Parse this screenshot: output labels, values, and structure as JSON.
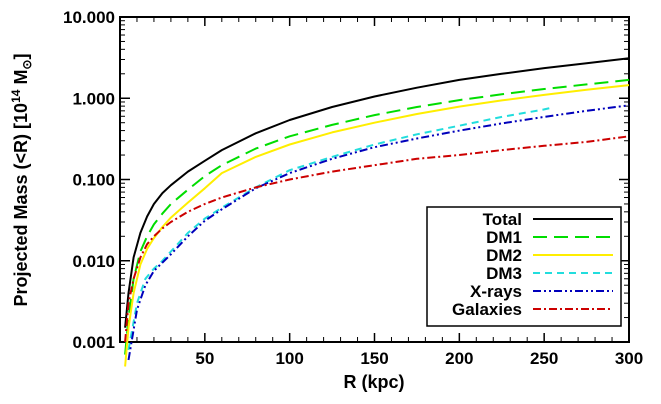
{
  "chart_data": {
    "type": "line",
    "title": "",
    "xlabel": "R (kpc)",
    "ylabel_prefix": "Projected Mass (<R) [10",
    "ylabel_exp": "14",
    "ylabel_unit": " M",
    "ylabel_sub": "⊙",
    "ylabel_suffix": "]",
    "xscale": "linear",
    "yscale": "log",
    "xlim": [
      0,
      300
    ],
    "ylim": [
      0.001,
      10
    ],
    "x_ticks": [
      50,
      100,
      150,
      200,
      250,
      300
    ],
    "x_tick_labels": [
      "50",
      "100",
      "150",
      "200",
      "250",
      "300"
    ],
    "y_ticks": [
      0.001,
      0.01,
      0.1,
      1,
      10
    ],
    "y_tick_labels": [
      "0.001",
      "0.010",
      "0.100",
      "1.000",
      "10.000"
    ],
    "legend_position": "bottom-right",
    "series": [
      {
        "name": "Total",
        "color": "#000000",
        "dash": "solid",
        "x": [
          3,
          5,
          8,
          12,
          16,
          20,
          25,
          30,
          40,
          50,
          60,
          80,
          100,
          125,
          150,
          175,
          200,
          225,
          250,
          275,
          300
        ],
        "y": [
          0.0015,
          0.004,
          0.011,
          0.022,
          0.035,
          0.05,
          0.068,
          0.085,
          0.125,
          0.17,
          0.23,
          0.37,
          0.54,
          0.78,
          1.05,
          1.35,
          1.68,
          2.0,
          2.35,
          2.7,
          3.1
        ]
      },
      {
        "name": "DM1",
        "color": "#00dd00",
        "dash": "longdash",
        "x": [
          3,
          5,
          8,
          12,
          16,
          20,
          25,
          30,
          40,
          50,
          60,
          80,
          100,
          125,
          150,
          175,
          200,
          225,
          250,
          275,
          300
        ],
        "y": [
          0.0007,
          0.002,
          0.006,
          0.013,
          0.02,
          0.028,
          0.038,
          0.05,
          0.075,
          0.11,
          0.15,
          0.24,
          0.34,
          0.47,
          0.62,
          0.78,
          0.95,
          1.12,
          1.3,
          1.48,
          1.68
        ]
      },
      {
        "name": "DM2",
        "color": "#ffee00",
        "dash": "solid",
        "x": [
          3,
          5,
          8,
          12,
          16,
          20,
          25,
          30,
          40,
          50,
          60,
          80,
          100,
          125,
          150,
          175,
          200,
          225,
          250,
          275,
          300
        ],
        "y": [
          0.0005,
          0.0015,
          0.004,
          0.009,
          0.014,
          0.019,
          0.026,
          0.034,
          0.052,
          0.078,
          0.12,
          0.19,
          0.27,
          0.38,
          0.5,
          0.64,
          0.79,
          0.94,
          1.1,
          1.27,
          1.45
        ]
      },
      {
        "name": "DM3",
        "color": "#22dddd",
        "dash": "dash",
        "x": [
          5,
          10,
          15,
          20,
          25,
          30,
          40,
          50,
          60,
          80,
          100,
          125,
          150,
          175,
          200,
          225,
          250,
          255
        ],
        "y": [
          0.0008,
          0.003,
          0.006,
          0.008,
          0.01,
          0.013,
          0.022,
          0.033,
          0.045,
          0.08,
          0.13,
          0.19,
          0.27,
          0.36,
          0.46,
          0.59,
          0.73,
          0.77
        ]
      },
      {
        "name": "X-rays",
        "color": "#0000bb",
        "dash": "dashdotdot",
        "x": [
          5,
          10,
          15,
          20,
          25,
          30,
          40,
          50,
          60,
          80,
          100,
          125,
          150,
          175,
          200,
          225,
          250,
          275,
          300
        ],
        "y": [
          0.0006,
          0.0025,
          0.005,
          0.0075,
          0.0095,
          0.012,
          0.02,
          0.031,
          0.043,
          0.078,
          0.12,
          0.18,
          0.25,
          0.32,
          0.4,
          0.49,
          0.59,
          0.7,
          0.82
        ]
      },
      {
        "name": "Galaxies",
        "color": "#cc0000",
        "dash": "dashdot",
        "x": [
          3,
          5,
          8,
          12,
          16,
          20,
          25,
          30,
          40,
          50,
          60,
          80,
          100,
          125,
          150,
          175,
          200,
          225,
          250,
          275,
          300
        ],
        "y": [
          0.001,
          0.003,
          0.006,
          0.011,
          0.016,
          0.02,
          0.025,
          0.03,
          0.04,
          0.05,
          0.06,
          0.08,
          0.1,
          0.125,
          0.15,
          0.18,
          0.2,
          0.23,
          0.26,
          0.29,
          0.34
        ]
      }
    ]
  }
}
